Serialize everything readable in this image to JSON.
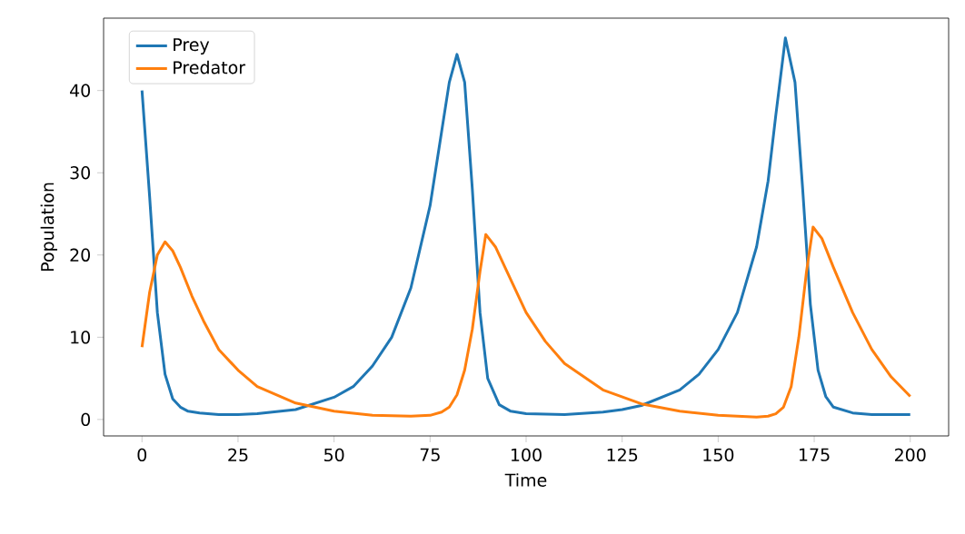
{
  "chart_data": {
    "type": "line",
    "xlabel": "Time",
    "ylabel": "Population",
    "xlim": [
      -10,
      210
    ],
    "ylim": [
      -2.0,
      48.8
    ],
    "xticks": [
      0,
      25,
      50,
      75,
      100,
      125,
      150,
      175,
      200
    ],
    "yticks": [
      0,
      10,
      20,
      30,
      40
    ],
    "legend": "top left",
    "grid": false,
    "marker": "none",
    "line_style": "solid",
    "series": [
      {
        "name": "Prey",
        "color": "#1f77b4",
        "x": [
          0,
          2,
          4,
          6,
          8,
          10,
          12,
          15,
          20,
          25,
          30,
          40,
          50,
          55,
          60,
          65,
          70,
          75,
          78,
          80,
          82,
          84,
          86,
          88,
          90,
          93,
          96,
          100,
          110,
          120,
          125,
          130,
          140,
          145,
          150,
          155,
          160,
          163,
          165,
          167.5,
          170,
          172,
          174,
          176,
          178,
          180,
          185,
          190,
          200
        ],
        "values": [
          40,
          27,
          13,
          5.5,
          2.5,
          1.5,
          1.0,
          0.8,
          0.6,
          0.6,
          0.7,
          1.2,
          2.7,
          4,
          6.5,
          10,
          16,
          26,
          35,
          41,
          44.4,
          41,
          28,
          13,
          5,
          1.8,
          1.0,
          0.7,
          0.6,
          0.9,
          1.2,
          1.7,
          3.6,
          5.5,
          8.5,
          13,
          21,
          29,
          37,
          46.4,
          41,
          28,
          14,
          6,
          2.8,
          1.5,
          0.8,
          0.6,
          0.6
        ]
      },
      {
        "name": "Predator",
        "color": "#ff7f0e",
        "x": [
          0,
          2,
          4,
          6,
          8,
          10,
          13,
          16,
          20,
          25,
          30,
          40,
          50,
          60,
          70,
          75,
          78,
          80,
          82,
          84,
          86,
          88,
          89.5,
          92,
          95,
          100,
          105,
          110,
          120,
          130,
          140,
          150,
          160,
          163,
          165,
          167,
          169,
          171,
          173,
          174.7,
          177,
          180,
          185,
          190,
          195,
          200
        ],
        "values": [
          8.8,
          15.5,
          20,
          21.6,
          20.5,
          18.5,
          15,
          12,
          8.5,
          6,
          4,
          2,
          1,
          0.5,
          0.4,
          0.5,
          0.9,
          1.5,
          3,
          6,
          11,
          18,
          22.5,
          21,
          18,
          13,
          9.5,
          6.8,
          3.6,
          1.9,
          1,
          0.5,
          0.3,
          0.4,
          0.7,
          1.5,
          4,
          10,
          18,
          23.4,
          22,
          18.5,
          13,
          8.5,
          5.2,
          2.8
        ]
      }
    ]
  }
}
